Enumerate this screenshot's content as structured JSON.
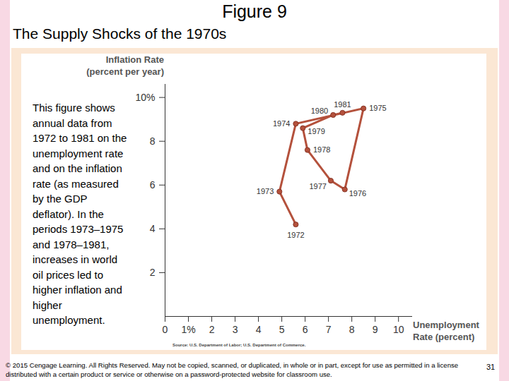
{
  "page": {
    "title": "Figure 9",
    "subtitle": "The Supply Shocks of the 1970s",
    "description": "This figure shows annual data from 1972 to 1981 on the unemployment rate and on the inflation rate (as measured by the GDP deflator). In the periods 1973–1975 and 1978–1981, increases in world oil prices led to higher inflation and higher unemployment.",
    "footer": "© 2015 Cengage Learning. All Rights Reserved. May not be copied, scanned, or duplicated, in whole or in part, except for use as permitted in a license distributed with a certain product or service or otherwise on a password-protected website for classroom use.",
    "page_number": "31"
  },
  "chart_data": {
    "type": "line",
    "x_label": "Unemployment\nRate (percent)",
    "y_label": "Inflation Rate\n(percent per year)",
    "source": "Source: U.S. Department of Labor; U.S. Department of Commerce.",
    "x": [
      5.6,
      4.9,
      5.6,
      8.5,
      7.7,
      7.1,
      6.1,
      5.9,
      7.2,
      7.6
    ],
    "values": [
      4.2,
      5.7,
      8.8,
      9.5,
      5.8,
      6.2,
      7.6,
      8.6,
      9.2,
      9.3
    ],
    "point_labels": [
      "1972",
      "1973",
      "1974",
      "1975",
      "1976",
      "1977",
      "1978",
      "1979",
      "1980",
      "1981"
    ],
    "color": "#b4513c",
    "marker": "circle",
    "xlim": [
      0,
      10.6
    ],
    "ylim": [
      0,
      10.6
    ],
    "xticks": [
      0,
      {
        "value": 1,
        "label": "1%"
      },
      2,
      3,
      4,
      5,
      6,
      7,
      8,
      9,
      10
    ],
    "yticks": [
      2,
      4,
      6,
      8,
      {
        "value": 10,
        "label": "10%"
      }
    ],
    "grid": false
  }
}
